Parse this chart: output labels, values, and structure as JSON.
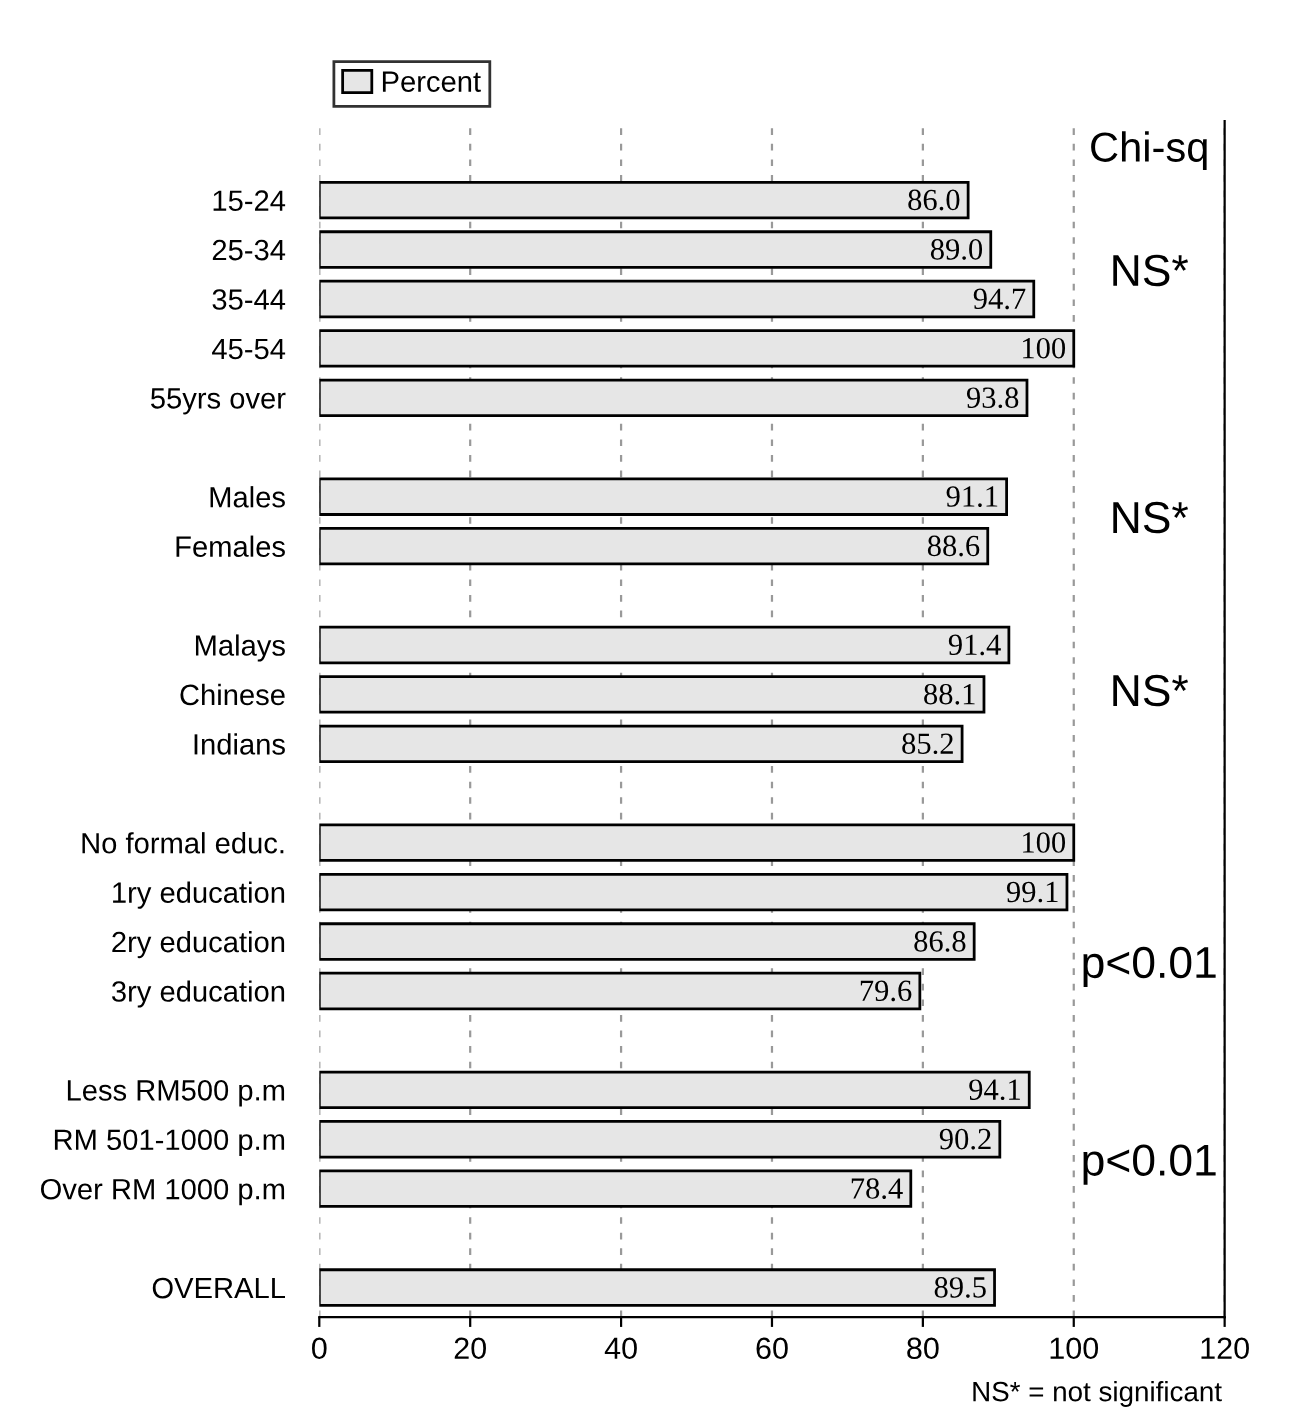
{
  "chart_data": {
    "type": "bar",
    "orientation": "horizontal",
    "categories": [
      "15-24",
      "25-34",
      "35-44",
      "45-54",
      "55yrs over",
      null,
      "Males",
      "Females",
      null,
      "Malays",
      "Chinese",
      "Indians",
      null,
      "No formal educ.",
      "1ry education",
      "2ry education",
      "3ry education",
      null,
      "Less RM500 p.m",
      "RM 501-1000 p.m",
      "Over RM 1000 p.m",
      null,
      "OVERALL"
    ],
    "series": [
      {
        "name": "Percent",
        "color": "#e6e6e6",
        "values": [
          86.0,
          89.0,
          94.7,
          100,
          93.8,
          null,
          91.1,
          88.6,
          null,
          91.4,
          88.1,
          85.2,
          null,
          100,
          99.1,
          86.8,
          79.6,
          null,
          94.1,
          90.2,
          78.4,
          null,
          89.5
        ]
      }
    ],
    "value_labels": [
      "86.0",
      "89.0",
      "94.7",
      "100",
      "93.8",
      null,
      "91.1",
      "88.6",
      null,
      "91.4",
      "88.1",
      "85.2",
      null,
      "100",
      "99.1",
      "86.8",
      "79.6",
      null,
      "94.1",
      "90.2",
      "78.4",
      null,
      "89.5"
    ],
    "xlim": [
      0,
      120
    ],
    "xticks": [
      0,
      20,
      40,
      60,
      80,
      100,
      120
    ],
    "grid": "x",
    "legend": "top left",
    "annotations": [
      "Chi-sq",
      "NS*",
      "NS*",
      "NS*",
      "p<0.01",
      "p<0.01",
      "NS* = not significant"
    ]
  }
}
